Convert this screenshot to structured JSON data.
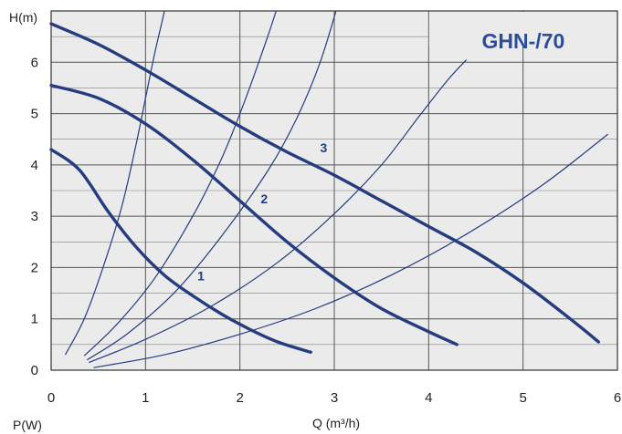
{
  "chart_data": {
    "type": "line",
    "title": "GHN-/70",
    "xlabel": "Q (m³/h)",
    "ylabel": "H(m)",
    "y2label": "P(W)",
    "xlim": [
      0,
      6
    ],
    "ylim": [
      0,
      7
    ],
    "x_ticks": [
      "0",
      "1",
      "2",
      "3",
      "4",
      "5",
      "6"
    ],
    "y_ticks": [
      "0",
      "1",
      "2",
      "3",
      "4",
      "5",
      "6"
    ],
    "grid": true,
    "colors": {
      "background": "#ebebeb",
      "curve": "#253c7e",
      "grid": "#555555",
      "title": "#2c4c9c"
    },
    "series": [
      {
        "name": "1",
        "kind": "pump-curve",
        "x": [
          0.0,
          0.3,
          0.6,
          0.9,
          1.2,
          1.5,
          1.8,
          2.1,
          2.4,
          2.75
        ],
        "y": [
          4.3,
          3.9,
          3.1,
          2.4,
          1.85,
          1.45,
          1.1,
          0.8,
          0.55,
          0.35
        ]
      },
      {
        "name": "2",
        "kind": "pump-curve",
        "x": [
          0.0,
          0.5,
          1.0,
          1.5,
          2.0,
          2.5,
          3.0,
          3.5,
          4.0,
          4.3
        ],
        "y": [
          5.55,
          5.3,
          4.8,
          4.1,
          3.3,
          2.5,
          1.8,
          1.2,
          0.75,
          0.5
        ]
      },
      {
        "name": "3",
        "kind": "pump-curve",
        "x": [
          0.0,
          0.5,
          1.0,
          1.5,
          2.0,
          2.5,
          3.0,
          3.5,
          4.0,
          4.5,
          5.0,
          5.5,
          5.8
        ],
        "y": [
          6.75,
          6.35,
          5.85,
          5.3,
          4.75,
          4.25,
          3.8,
          3.3,
          2.8,
          2.3,
          1.7,
          1.0,
          0.55
        ]
      }
    ],
    "system_curves": [
      {
        "x": [
          0.15,
          0.35,
          0.55,
          0.75,
          0.9,
          1.0,
          1.1,
          1.2,
          1.28
        ],
        "y": [
          0.3,
          1.0,
          2.0,
          3.2,
          4.4,
          5.3,
          6.2,
          7.0,
          7.8
        ]
      },
      {
        "x": [
          0.35,
          0.7,
          1.1,
          1.5,
          1.8,
          2.0,
          2.2,
          2.4,
          2.5
        ],
        "y": [
          0.28,
          0.9,
          1.8,
          3.0,
          4.1,
          5.0,
          6.0,
          7.1,
          7.9
        ]
      },
      {
        "x": [
          0.38,
          0.8,
          1.3,
          1.8,
          2.3,
          2.6,
          2.85,
          3.05
        ],
        "y": [
          0.2,
          0.7,
          1.5,
          2.6,
          3.9,
          4.9,
          6.0,
          7.2
        ]
      },
      {
        "x": [
          0.4,
          1.0,
          1.7,
          2.4,
          3.0,
          3.5,
          3.9,
          4.2,
          4.4
        ],
        "y": [
          0.15,
          0.6,
          1.25,
          2.1,
          3.05,
          4.0,
          4.95,
          5.65,
          6.05
        ]
      },
      {
        "x": [
          0.45,
          1.2,
          2.0,
          2.8,
          3.6,
          4.4,
          5.2,
          5.9
        ],
        "y": [
          0.05,
          0.3,
          0.7,
          1.2,
          1.85,
          2.65,
          3.6,
          4.6
        ]
      }
    ]
  }
}
